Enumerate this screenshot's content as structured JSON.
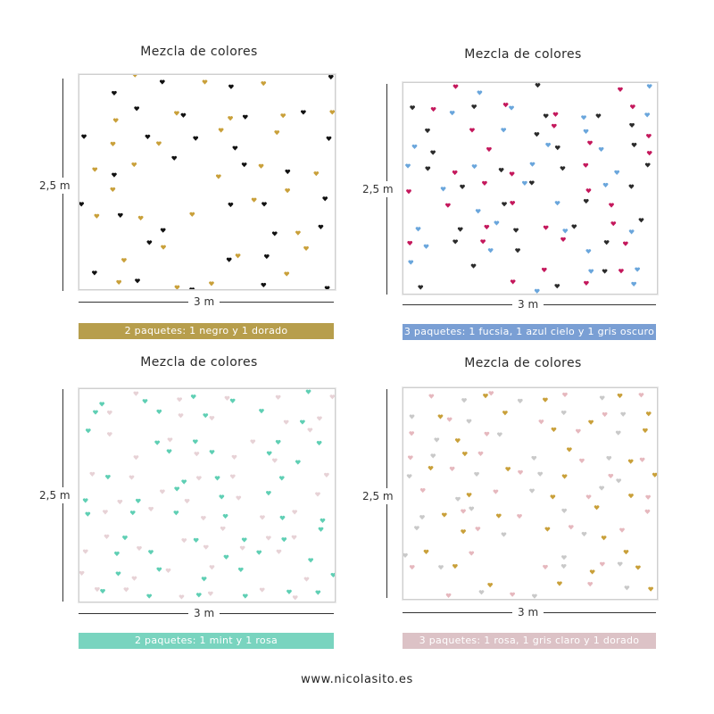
{
  "panels": [
    {
      "title": "Mezcla de colores",
      "height_label": "2,5 m",
      "width_label": "3 m",
      "caption": "2 paquetes: 1 negro y 1 dorado",
      "caption_color": "#b79e4c",
      "heart_colors": [
        "#111111",
        "#c9a03a"
      ]
    },
    {
      "title": "Mezcla de colores",
      "height_label": "2,5 m",
      "width_label": "3 m",
      "caption": "3 paquetes: 1 fucsia, 1 azul cielo y 1 gris oscuro",
      "caption_color": "#7a9fd4",
      "heart_colors": [
        "#c4185c",
        "#6aa6dc",
        "#2b2b2b"
      ]
    },
    {
      "title": "Mezcla de colores",
      "height_label": "2,5 m",
      "width_label": "3 m",
      "caption": "2 paquetes: 1 mint y 1 rosa",
      "caption_color": "#79d4bf",
      "heart_colors": [
        "#5fcfb4",
        "#e7d2d6"
      ]
    },
    {
      "title": "Mezcla de colores",
      "height_label": "2,5 m",
      "width_label": "3 m",
      "caption": "3 paquetes: 1 rosa, 1 gris claro y 1 dorado",
      "caption_color": "#dcc2c6",
      "heart_colors": [
        "#e6b8be",
        "#c9c9c9",
        "#c9a03a"
      ]
    }
  ],
  "footer": "www.nicolasito.es"
}
